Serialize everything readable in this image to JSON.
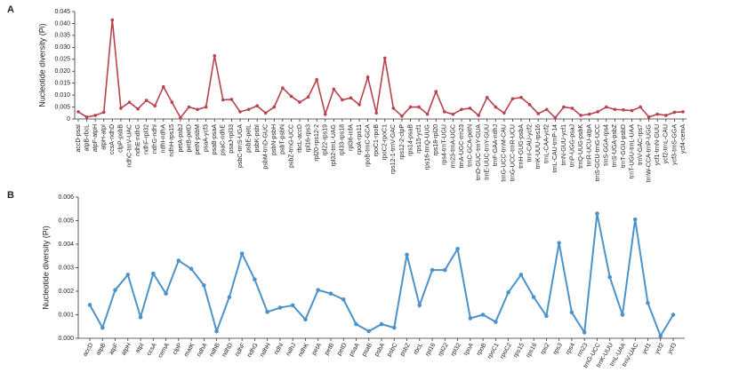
{
  "chart_data": [
    {
      "type": "line",
      "label": "A",
      "y_label": "Nucleotide diversity (Pi)",
      "color": "#b8424e",
      "categories": [
        "accD-psaI",
        "atpB-rbcL",
        "atpF-atpH",
        "atpH-atpI",
        "ccsA-ndhD",
        "clpP-psbB",
        "ndhC-trnV-UAC",
        "ndhE-ndhG",
        "ndhF-rpl32",
        "ndhG-ndhI",
        "ndhI-ndhA",
        "ndhH-rps15",
        "petA-psbJ",
        "petB-petD",
        "petN-psbM",
        "psaA-ycf3",
        "psaB-psaA",
        "psaC-ndhE",
        "psaJ-rpl33",
        "psbC-trnS-UGA",
        "psbE-petL",
        "psbK-psbI",
        "psbM-trnD-GUC",
        "psbN-psbH",
        "psbT-psbN",
        "psbZ-trnG-UCC",
        "rbcL-accD",
        "rpl16-rps3",
        "rpl20-rps12-2",
        "rpl22-rps19",
        "rpl32-trnL-UAG",
        "rpl33-rps18",
        "rpl36-infA",
        "rpoA-rps11",
        "rpoB-trnC-GCA",
        "rpoC1-rpoB",
        "rpoC2-rpoC1",
        "rps12-1-trnV-GAC",
        "rps12-2-clpP",
        "rps14-psaB",
        "rps15-ycf1",
        "rps16-trnQ-UUG",
        "rps18-rpl20",
        "rps4-trnT-UGU",
        "rrn23-trnA-UGC",
        "trnA-UGC-rrn23",
        "trnC-GCA-petN",
        "trnD-GUC-trnY-GUA",
        "trnE-UUC-trnY-GUU",
        "trnF-GAA-ndhJ",
        "trnG-UCC-trnM-CAU",
        "trnG-UCC-trnR-UCU",
        "trnH-GUG-psbA",
        "trnI-CAU-ycf2",
        "trnK-UUU-rps16",
        "trnL-CAA-ycf2",
        "trnL-CAU-trnP-14",
        "trnN-GUU-ycf1",
        "trnP-UGG-psaJ",
        "trnQ-UUG-psbK",
        "trnR-UCU-atpA",
        "trnS-GCU-trnG-UCC",
        "trnS-GGA-rps4",
        "trnS-UGA-psbZ",
        "trnT-GGU-psbD",
        "trnT-UGU-trnL-UAA",
        "trnV-GAC-rps7",
        "trnW-CCA-trnP-UGG",
        "ycf1-trnN-GUU",
        "ycf2-trnL-CAU",
        "ycf3-trnS-GGA",
        "ycf4-cemA"
      ],
      "values": [
        0.003,
        0.0008,
        0.0015,
        0.0028,
        0.0415,
        0.0045,
        0.007,
        0.0042,
        0.0078,
        0.0055,
        0.0135,
        0.007,
        0.0005,
        0.005,
        0.004,
        0.005,
        0.0265,
        0.008,
        0.0082,
        0.003,
        0.004,
        0.0055,
        0.0025,
        0.005,
        0.013,
        0.0095,
        0.007,
        0.0092,
        0.0165,
        0.002,
        0.0125,
        0.008,
        0.0088,
        0.006,
        0.0175,
        0.0025,
        0.0255,
        0.0045,
        0.0012,
        0.005,
        0.005,
        0.002,
        0.0115,
        0.003,
        0.002,
        0.004,
        0.0045,
        0.0015,
        0.009,
        0.005,
        0.0025,
        0.0085,
        0.009,
        0.006,
        0.0022,
        0.004,
        0.0005,
        0.005,
        0.0045,
        0.0015,
        0.002,
        0.003,
        0.005,
        0.004,
        0.0038,
        0.0035,
        0.005,
        0.0008,
        0.002,
        0.0015,
        0.0028,
        0.003
      ],
      "ylim": [
        0,
        0.045
      ],
      "yticks": [
        0,
        0.005,
        {
          "value": 0.01,
          "label": "0.010"
        },
        0.015,
        {
          "value": 0.02,
          "label": "0.020"
        },
        0.025,
        {
          "value": 0.03,
          "label": "0.030"
        },
        0.035,
        {
          "value": 0.04,
          "label": "0.040"
        },
        0.045
      ]
    },
    {
      "type": "line",
      "label": "B",
      "y_label": "Nucleotide diversity (Pi)",
      "color": "#4b93c9",
      "categories": [
        "accD",
        "atpB",
        "atpF",
        "atpH",
        "atpI",
        "ccsA",
        "cemA",
        "clpP",
        "matK",
        "ndhA",
        "ndhB",
        "ndhD",
        "ndhF",
        "ndhG",
        "ndhH",
        "ndhI",
        "ndhJ",
        "ndhK",
        "petA",
        "petB",
        "petD",
        "psaA",
        "psaB",
        "psbA",
        "psbC",
        "psbZ",
        "rbcL",
        "rpl16",
        "rpl22",
        "rpl32",
        "rpoA",
        "rpoB",
        "rpoC1",
        "rpoC2",
        "rps15",
        "rps16",
        "rps2",
        "rps3",
        "rps4",
        "rrn23",
        "trnG-UCC",
        "trnK-UUU",
        "trnL-UAA",
        "trnV-UAC",
        "ycf1",
        "ycf2",
        "ycf3"
      ],
      "values": [
        0.00142,
        0.00045,
        0.00205,
        0.0027,
        0.0009,
        0.00275,
        0.0019,
        0.0033,
        0.00295,
        0.00225,
        0.0003,
        0.00175,
        0.0036,
        0.0025,
        0.00112,
        0.0013,
        0.0014,
        0.0008,
        0.00205,
        0.0019,
        0.00165,
        0.0006,
        0.0003,
        0.0006,
        0.00045,
        0.00355,
        0.0014,
        0.0029,
        0.0029,
        0.0038,
        0.00085,
        0.001,
        0.0007,
        0.00195,
        0.0027,
        0.00175,
        0.00095,
        0.00405,
        0.0011,
        0.00025,
        0.0053,
        0.0026,
        0.001,
        0.00505,
        0.0015,
        0.0001,
        0.001
      ],
      "ylim": [
        0,
        0.006
      ],
      "yticks": [
        {
          "value": 0,
          "label": "0.000"
        },
        0.001,
        0.002,
        0.003,
        0.004,
        0.005,
        0.006
      ]
    }
  ]
}
